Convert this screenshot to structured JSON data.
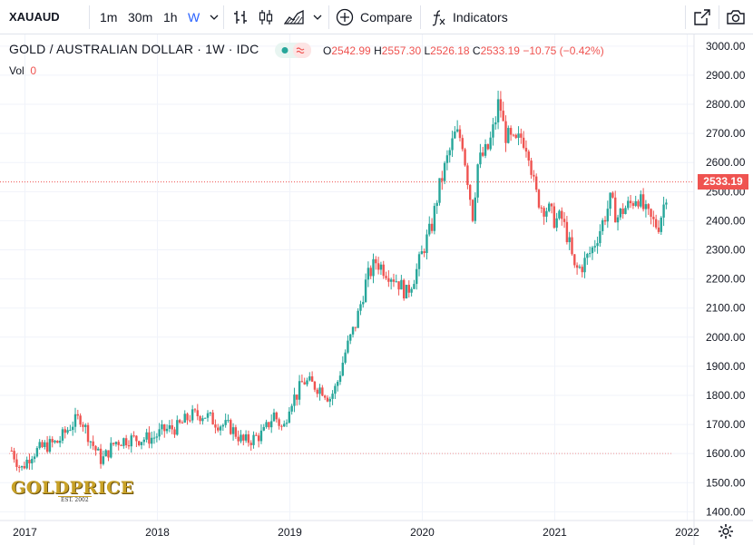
{
  "toolbar": {
    "symbol": "XAUAUD",
    "intervals": [
      "1m",
      "30m",
      "1h",
      "W"
    ],
    "active_interval": "W",
    "compare_label": "Compare",
    "indicators_label": "Indicators",
    "icons": [
      "chevron-down-icon",
      "bar-chart-icon",
      "candlestick-icon",
      "area-chart-icon",
      "chevron-down-icon",
      "plus-circle-icon",
      "function-icon",
      "share-icon",
      "camera-icon"
    ]
  },
  "legend": {
    "title": "GOLD / AUSTRALIAN DOLLAR · 1W · IDC",
    "o_label": "O",
    "o_value": "2542.99",
    "h_label": "H",
    "h_value": "2557.30",
    "l_label": "L",
    "l_value": "2526.18",
    "c_label": "C",
    "c_value": "2533.19",
    "change": "−10.75 (−0.42%)",
    "vol_label": "Vol",
    "vol_value": "0"
  },
  "watermark": {
    "logo_text": "GOLDPRICE",
    "sub_text": "EST. 2002"
  },
  "colors": {
    "up": "#26a69a",
    "down": "#ef5350",
    "grid": "#f0f3fa",
    "axis_text": "#131722",
    "price_line": "#ef5350"
  },
  "chart_data": {
    "type": "candlestick",
    "title": "GOLD / AUSTRALIAN DOLLAR · 1W · IDC",
    "xlabel": "",
    "ylabel": "",
    "ylim": [
      1370,
      3040
    ],
    "y_ticks": [
      1400,
      1500,
      1600,
      1700,
      1800,
      1900,
      2000,
      2100,
      2200,
      2300,
      2400,
      2500,
      2600,
      2700,
      2800,
      2900,
      3000
    ],
    "y_tick_labels": [
      "1400.00",
      "1500.00",
      "1600.00",
      "1700.00",
      "1800.00",
      "1900.00",
      "2000.00",
      "2100.00",
      "2200.00",
      "2300.00",
      "2400.00",
      "2500.00",
      "2600.00",
      "2700.00",
      "2800.00",
      "2900.00",
      "3000.00"
    ],
    "x_tick_labels": [
      "2017",
      "2018",
      "2019",
      "2020",
      "2021",
      "2022"
    ],
    "x_tick_years": [
      2017,
      2018,
      2019,
      2020,
      2021,
      2022
    ],
    "x_start": 2016.88,
    "x_end": 2021.88,
    "last_price": 2533.19,
    "last_price_label": "2533.19",
    "reference_line": 1600,
    "grid": true,
    "close_series": [
      [
        2016.9,
        1610
      ],
      [
        2016.97,
        1545
      ],
      [
        2017.05,
        1600
      ],
      [
        2017.15,
        1625
      ],
      [
        2017.25,
        1640
      ],
      [
        2017.35,
        1700
      ],
      [
        2017.42,
        1725
      ],
      [
        2017.5,
        1640
      ],
      [
        2017.58,
        1575
      ],
      [
        2017.68,
        1640
      ],
      [
        2017.78,
        1650
      ],
      [
        2017.88,
        1650
      ],
      [
        2017.97,
        1655
      ],
      [
        2018.05,
        1680
      ],
      [
        2018.15,
        1690
      ],
      [
        2018.25,
        1730
      ],
      [
        2018.35,
        1735
      ],
      [
        2018.45,
        1705
      ],
      [
        2018.55,
        1690
      ],
      [
        2018.65,
        1640
      ],
      [
        2018.72,
        1650
      ],
      [
        2018.8,
        1670
      ],
      [
        2018.88,
        1735
      ],
      [
        2018.95,
        1680
      ],
      [
        2019.0,
        1780
      ],
      [
        2019.05,
        1800
      ],
      [
        2019.1,
        1850
      ],
      [
        2019.18,
        1835
      ],
      [
        2019.25,
        1820
      ],
      [
        2019.3,
        1790
      ],
      [
        2019.35,
        1830
      ],
      [
        2019.42,
        1950
      ],
      [
        2019.5,
        2050
      ],
      [
        2019.58,
        2200
      ],
      [
        2019.65,
        2260
      ],
      [
        2019.72,
        2230
      ],
      [
        2019.8,
        2200
      ],
      [
        2019.88,
        2150
      ],
      [
        2019.95,
        2220
      ],
      [
        2020.02,
        2320
      ],
      [
        2020.07,
        2380
      ],
      [
        2020.12,
        2500
      ],
      [
        2020.18,
        2600
      ],
      [
        2020.25,
        2700
      ],
      [
        2020.3,
        2680
      ],
      [
        2020.38,
        2420
      ],
      [
        2020.42,
        2600
      ],
      [
        2020.5,
        2650
      ],
      [
        2020.55,
        2740
      ],
      [
        2020.58,
        2820
      ],
      [
        2020.62,
        2700
      ],
      [
        2020.7,
        2660
      ],
      [
        2020.75,
        2690
      ],
      [
        2020.8,
        2650
      ],
      [
        2020.85,
        2500
      ],
      [
        2020.9,
        2450
      ],
      [
        2020.95,
        2440
      ],
      [
        2021.0,
        2400
      ],
      [
        2021.05,
        2410
      ],
      [
        2021.1,
        2340
      ],
      [
        2021.15,
        2230
      ],
      [
        2021.2,
        2240
      ],
      [
        2021.28,
        2300
      ],
      [
        2021.35,
        2380
      ],
      [
        2021.42,
        2470
      ],
      [
        2021.47,
        2410
      ],
      [
        2021.52,
        2440
      ],
      [
        2021.58,
        2460
      ],
      [
        2021.62,
        2490
      ],
      [
        2021.68,
        2430
      ],
      [
        2021.73,
        2400
      ],
      [
        2021.78,
        2380
      ],
      [
        2021.82,
        2450
      ],
      [
        2021.86,
        2533
      ]
    ]
  }
}
